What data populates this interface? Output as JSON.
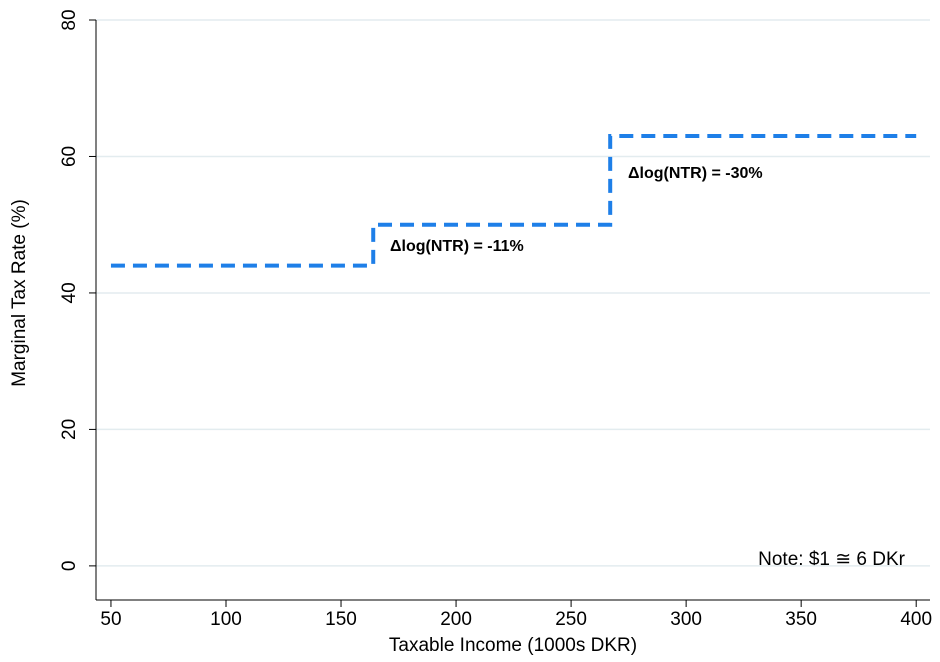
{
  "chart_data": {
    "type": "line",
    "x_label": "Taxable Income (1000s DKR)",
    "y_label": "Marginal Tax Rate (%)",
    "x": [
      50,
      164,
      164,
      267,
      267,
      400
    ],
    "series": [
      {
        "color": "#1e7fe8",
        "values": [
          44,
          44,
          50,
          50,
          63,
          63
        ]
      }
    ],
    "xlim": [
      43.5,
      406
    ],
    "ylim": [
      -5,
      80
    ],
    "xticks": [
      50,
      100,
      150,
      200,
      250,
      300,
      350,
      400
    ],
    "yticks": [
      0,
      20,
      40,
      60,
      80
    ],
    "grid": true,
    "annotations": [
      "Δlog(NTR) = -11%",
      "Δlog(NTR) = -30%"
    ],
    "note": "Note: $1 ≅ 6 DKr"
  }
}
